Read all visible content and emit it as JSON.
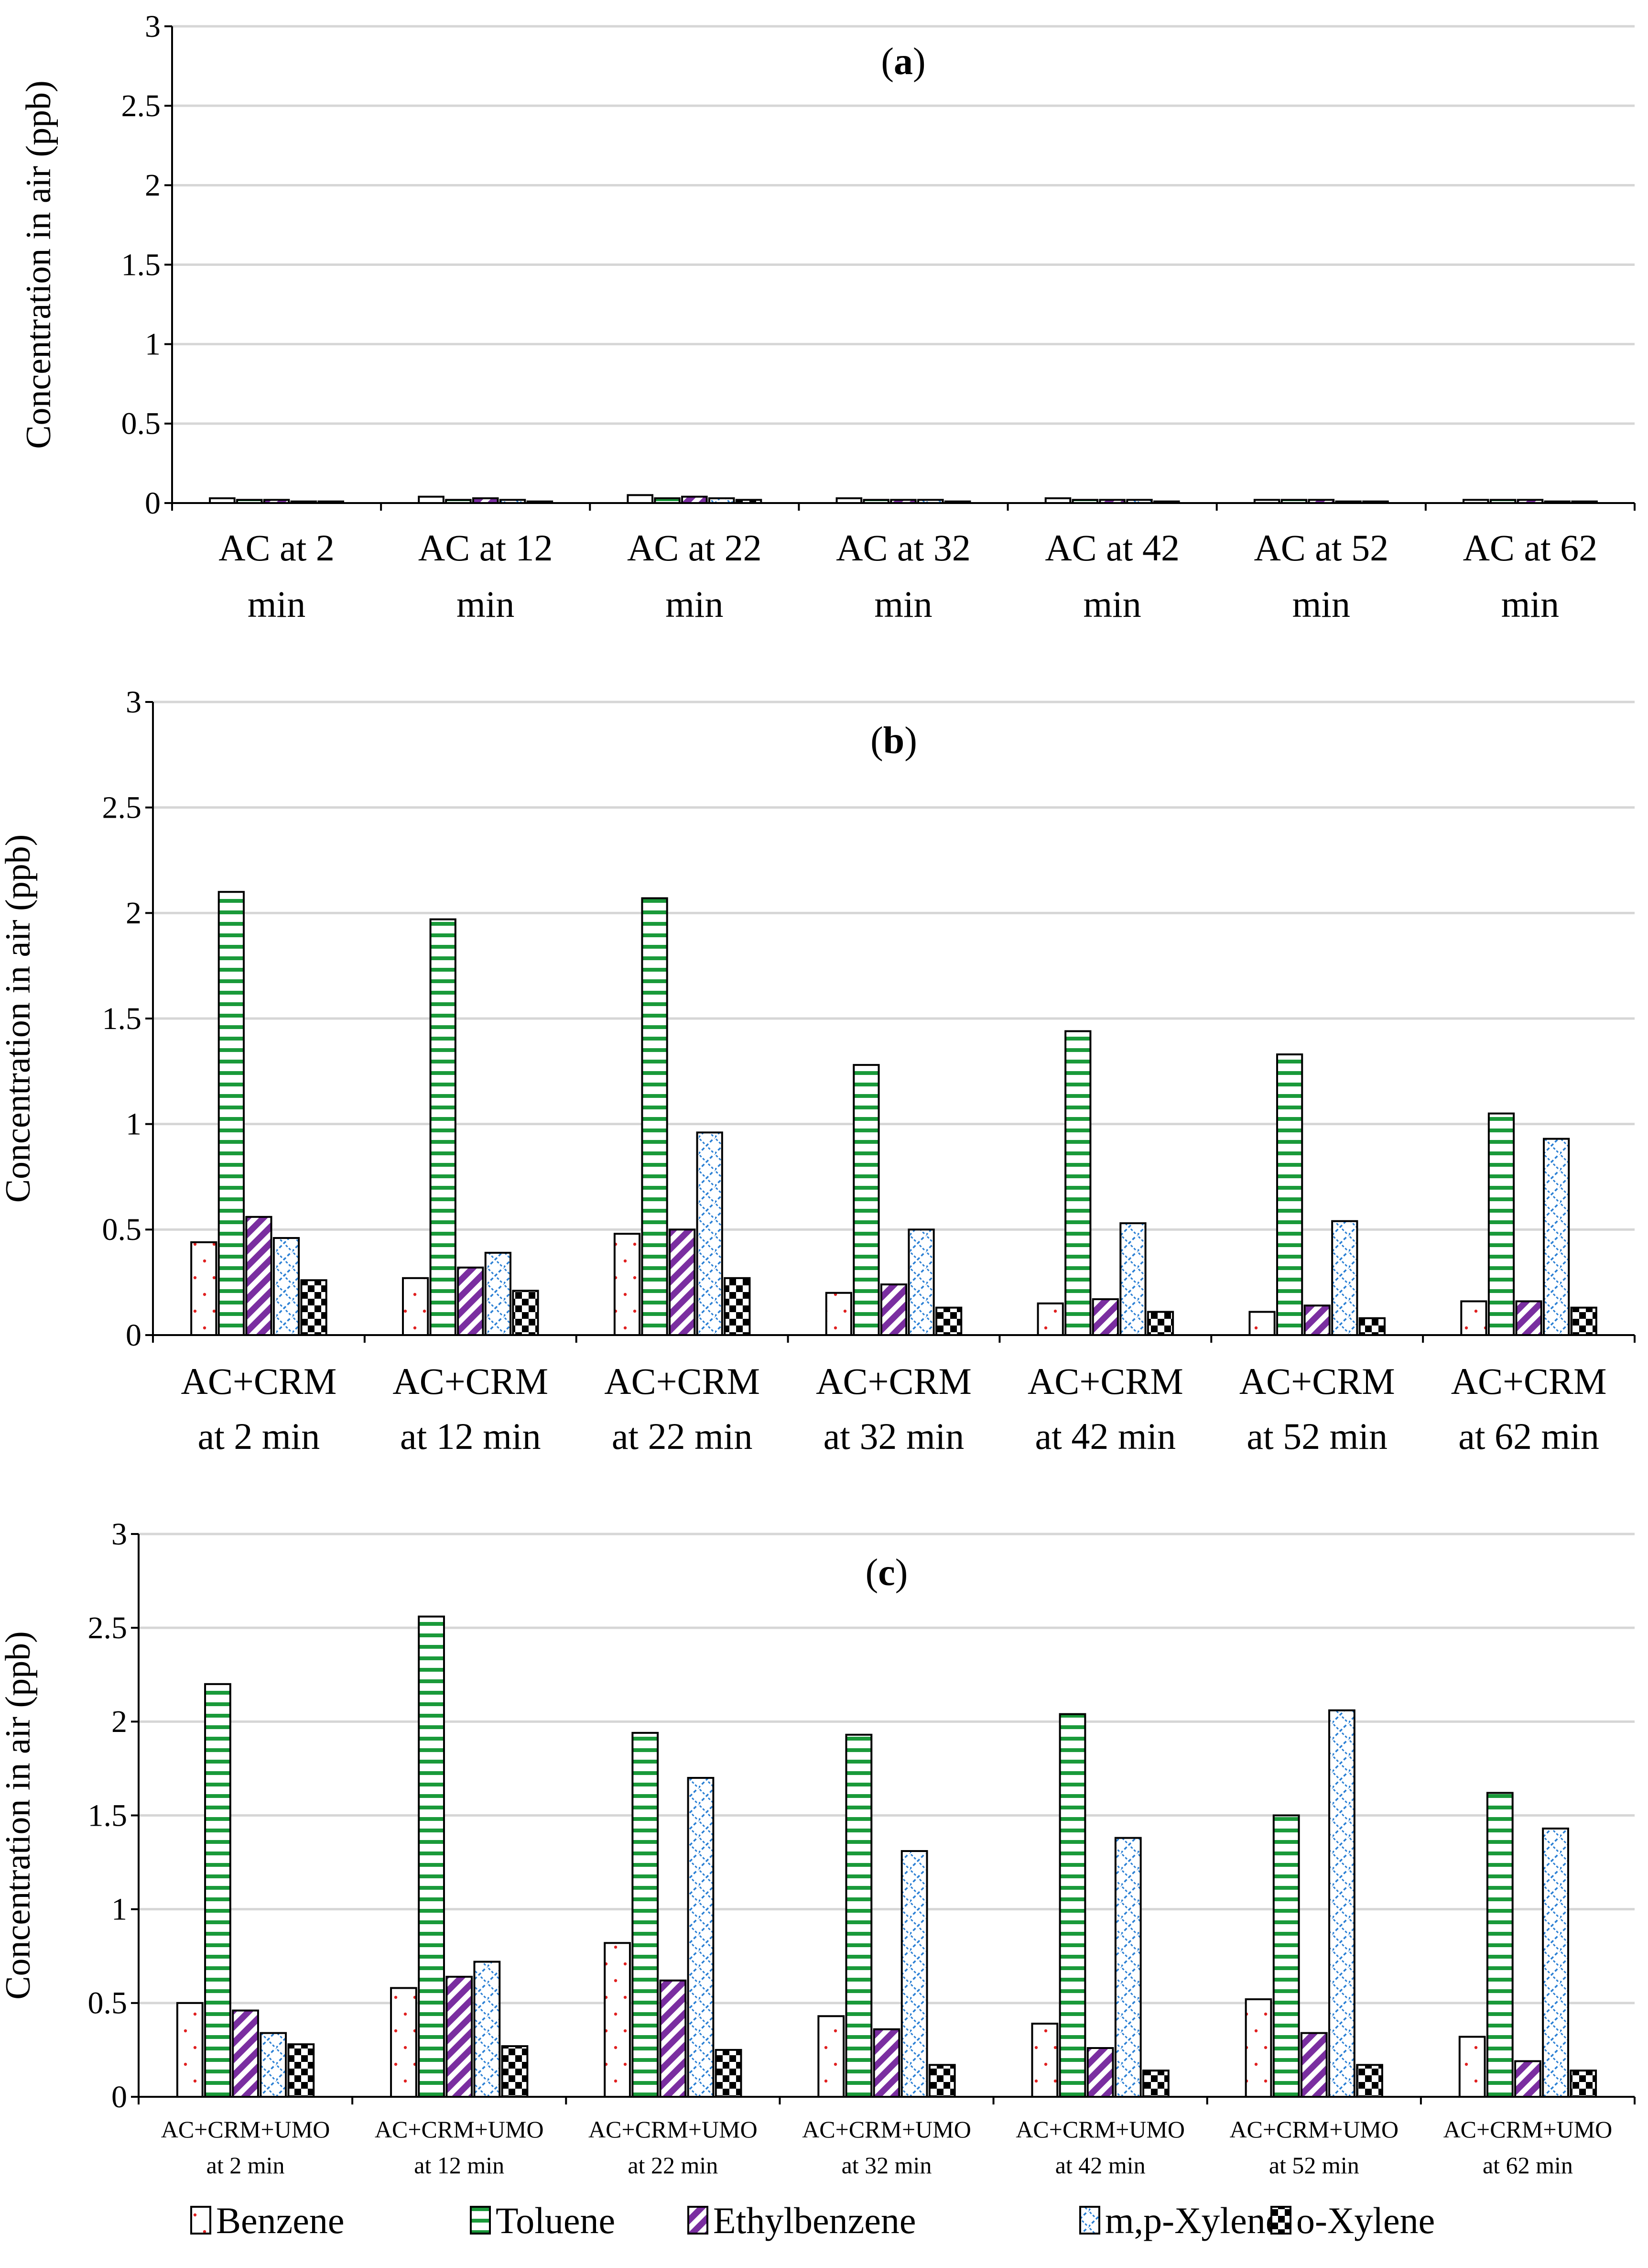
{
  "legend": {
    "placement": "bottom",
    "items": [
      {
        "label": "Benzene",
        "pattern": "dots",
        "color": "#e02020"
      },
      {
        "label": "Toluene",
        "pattern": "hlines",
        "color": "#1a9a3a"
      },
      {
        "label": "Ethylbenzene",
        "pattern": "diag",
        "color": "#7a2ea0"
      },
      {
        "label": "m,p-Xylene",
        "pattern": "wave",
        "color": "#2a7fd4"
      },
      {
        "label": "o-Xylene",
        "pattern": "checker",
        "color": "#000000"
      }
    ]
  },
  "chart_data": [
    {
      "type": "bar",
      "panel": "(a)",
      "ylabel": "Concentration in air (ppb)",
      "ylim": [
        0,
        3
      ],
      "yticks": [
        "0",
        "0.5",
        "1",
        "1.5",
        "2",
        "2.5",
        "3"
      ],
      "grid": true,
      "categories": [
        [
          "AC at 2",
          "min"
        ],
        [
          "AC at 12",
          "min"
        ],
        [
          "AC at 22",
          "min"
        ],
        [
          "AC at 32",
          "min"
        ],
        [
          "AC at 42",
          "min"
        ],
        [
          "AC at 52",
          "min"
        ],
        [
          "AC at 62",
          "min"
        ]
      ],
      "series": [
        {
          "name": "Benzene",
          "values": [
            0.03,
            0.04,
            0.05,
            0.03,
            0.03,
            0.02,
            0.02
          ]
        },
        {
          "name": "Toluene",
          "values": [
            0.02,
            0.02,
            0.03,
            0.02,
            0.02,
            0.02,
            0.02
          ]
        },
        {
          "name": "Ethylbenzene",
          "values": [
            0.02,
            0.03,
            0.04,
            0.02,
            0.02,
            0.02,
            0.02
          ]
        },
        {
          "name": "m,p-Xylene",
          "values": [
            0.01,
            0.02,
            0.03,
            0.02,
            0.02,
            0.01,
            0.01
          ]
        },
        {
          "name": "o-Xylene",
          "values": [
            0.01,
            0.01,
            0.02,
            0.01,
            0.01,
            0.01,
            0.01
          ]
        }
      ]
    },
    {
      "type": "bar",
      "panel": "(b)",
      "ylabel": "Concentration in air (ppb)",
      "ylim": [
        0,
        3
      ],
      "yticks": [
        "0",
        "0.5",
        "1",
        "1.5",
        "2",
        "2.5",
        "3"
      ],
      "grid": true,
      "categories": [
        [
          "AC+CRM",
          "at 2 min"
        ],
        [
          "AC+CRM",
          "at 12 min"
        ],
        [
          "AC+CRM",
          "at 22 min"
        ],
        [
          "AC+CRM",
          "at 32 min"
        ],
        [
          "AC+CRM",
          "at 42 min"
        ],
        [
          "AC+CRM",
          "at 52 min"
        ],
        [
          "AC+CRM",
          "at 62 min"
        ]
      ],
      "series": [
        {
          "name": "Benzene",
          "values": [
            0.44,
            0.27,
            0.48,
            0.2,
            0.15,
            0.11,
            0.16
          ]
        },
        {
          "name": "Toluene",
          "values": [
            2.1,
            1.97,
            2.07,
            1.28,
            1.44,
            1.33,
            1.05
          ]
        },
        {
          "name": "Ethylbenzene",
          "values": [
            0.56,
            0.32,
            0.5,
            0.24,
            0.17,
            0.14,
            0.16
          ]
        },
        {
          "name": "m,p-Xylene",
          "values": [
            0.46,
            0.39,
            0.96,
            0.5,
            0.53,
            0.54,
            0.93
          ]
        },
        {
          "name": "o-Xylene",
          "values": [
            0.26,
            0.21,
            0.27,
            0.13,
            0.11,
            0.08,
            0.13
          ]
        }
      ]
    },
    {
      "type": "bar",
      "panel": "(c)",
      "ylabel": "Concentration in air (ppb)",
      "ylim": [
        0,
        3
      ],
      "yticks": [
        "0",
        "0.5",
        "1",
        "1.5",
        "2",
        "2.5",
        "3"
      ],
      "grid": true,
      "categories": [
        [
          "AC+CRM+UMO",
          "at 2 min"
        ],
        [
          "AC+CRM+UMO",
          "at 12 min"
        ],
        [
          "AC+CRM+UMO",
          "at 22 min"
        ],
        [
          "AC+CRM+UMO",
          "at 32 min"
        ],
        [
          "AC+CRM+UMO",
          "at 42 min"
        ],
        [
          "AC+CRM+UMO",
          "at 52 min"
        ],
        [
          "AC+CRM+UMO",
          "at 62 min"
        ]
      ],
      "series": [
        {
          "name": "Benzene",
          "values": [
            0.5,
            0.58,
            0.82,
            0.43,
            0.39,
            0.52,
            0.32
          ]
        },
        {
          "name": "Toluene",
          "values": [
            2.2,
            2.56,
            1.94,
            1.93,
            2.04,
            1.5,
            1.62
          ]
        },
        {
          "name": "Ethylbenzene",
          "values": [
            0.46,
            0.64,
            0.62,
            0.36,
            0.26,
            0.34,
            0.19
          ]
        },
        {
          "name": "m,p-Xylene",
          "values": [
            0.34,
            0.72,
            1.7,
            1.31,
            1.38,
            2.06,
            1.43
          ]
        },
        {
          "name": "o-Xylene",
          "values": [
            0.28,
            0.27,
            0.25,
            0.17,
            0.14,
            0.17,
            0.14
          ]
        }
      ]
    }
  ]
}
